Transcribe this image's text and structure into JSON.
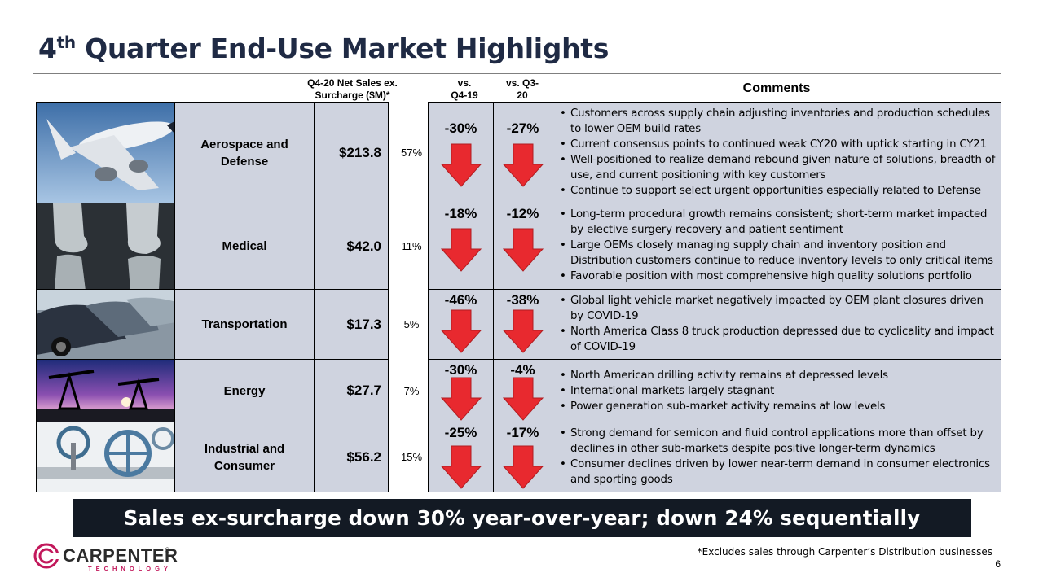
{
  "title": {
    "main": "4",
    "sup": "th",
    "rest": " Quarter End-Use Market Highlights"
  },
  "headers": {
    "net_sales": "Q4-20 Net Sales ex. Surcharge ($M)*",
    "vs_q4": "vs. Q4-19",
    "vs_q3": "vs. Q3-20",
    "comments": "Comments"
  },
  "rows": [
    {
      "name": "Aerospace and Defense",
      "value": "$213.8",
      "pct": "57%",
      "vs_q4": "-30%",
      "vs_q3": "-27%",
      "comments": [
        "Customers across supply chain adjusting inventories and production schedules to lower OEM build rates",
        "Current consensus points to continued weak CY20 with uptick starting in CY21",
        "Well-positioned to realize demand rebound given nature of solutions, breadth of use, and current positioning with key customers",
        "Continue to support select urgent opportunities especially related to Defense"
      ]
    },
    {
      "name": "Medical",
      "value": "$42.0",
      "pct": "11%",
      "vs_q4": "-18%",
      "vs_q3": "-12%",
      "comments": [
        "Long-term procedural growth remains consistent; short-term market impacted by elective surgery recovery and patient sentiment",
        "Large OEMs closely managing supply chain and inventory position and Distribution customers continue to reduce inventory levels to only critical items",
        "Favorable position with most comprehensive high quality solutions portfolio"
      ]
    },
    {
      "name": "Transportation",
      "value": "$17.3",
      "pct": "5%",
      "vs_q4": "-46%",
      "vs_q3": "-38%",
      "comments": [
        "Global light vehicle market negatively impacted by OEM plant closures driven by COVID-19",
        "North America Class 8 truck production depressed due to cyclicality and impact of COVID-19"
      ]
    },
    {
      "name": "Energy",
      "value": "$27.7",
      "pct": "7%",
      "vs_q4": "-30%",
      "vs_q3": "-4%",
      "comments": [
        "North American drilling activity remains at depressed levels",
        "International markets largely stagnant",
        "Power generation sub-market activity remains at low levels"
      ]
    },
    {
      "name": "Industrial and Consumer",
      "value": "$56.2",
      "pct": "15%",
      "vs_q4": "-25%",
      "vs_q3": "-17%",
      "comments": [
        "Strong demand for semicon and fluid control applications more than offset by declines in other sub-markets despite positive longer-term dynamics",
        "Consumer declines driven by lower near-term demand in consumer electronics and sporting goods"
      ]
    }
  ],
  "banner": "Sales ex-surcharge down 30% year-over-year; down 24% sequentially",
  "footnote": "*Excludes sales through Carpenter’s Distribution businesses",
  "page_number": "6",
  "logo": {
    "name": "CARPENTER",
    "sub": "TECHNOLOGY",
    "reg": "®"
  },
  "colors": {
    "arrow": "#e8292f",
    "cell_fill": "#cfd3df",
    "banner": "#131a24",
    "title": "#1f2a44"
  }
}
